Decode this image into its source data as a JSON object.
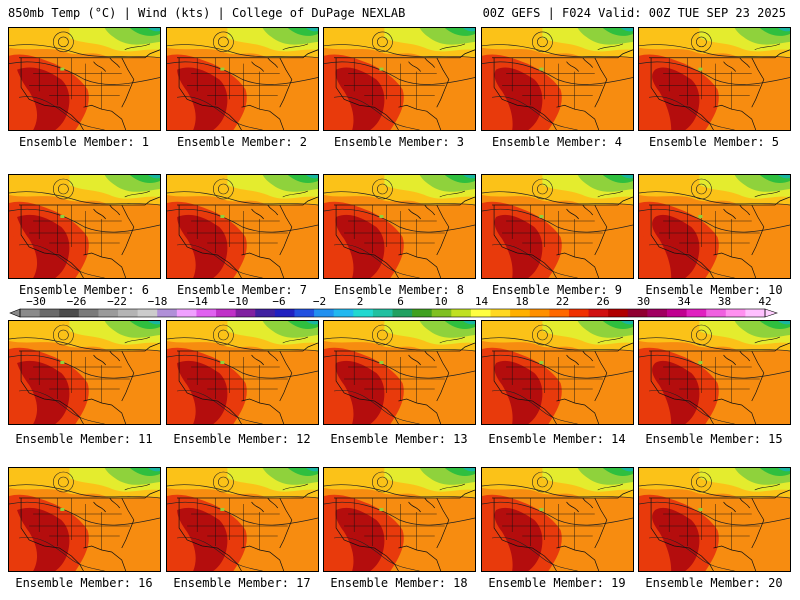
{
  "header": {
    "left_title": "850mb Temp (°C) | Wind (kts) | College of DuPage NEXLAB",
    "right_title": "00Z GEFS | F024 Valid: 00Z TUE SEP 23 2025"
  },
  "members": [
    {
      "label": "Ensemble Member: 1"
    },
    {
      "label": "Ensemble Member: 2"
    },
    {
      "label": "Ensemble Member: 3"
    },
    {
      "label": "Ensemble Member: 4"
    },
    {
      "label": "Ensemble Member: 5"
    },
    {
      "label": "Ensemble Member: 6"
    },
    {
      "label": "Ensemble Member: 7"
    },
    {
      "label": "Ensemble Member: 8"
    },
    {
      "label": "Ensemble Member: 9"
    },
    {
      "label": "Ensemble Member: 10"
    },
    {
      "label": "Ensemble Member: 11"
    },
    {
      "label": "Ensemble Member: 12"
    },
    {
      "label": "Ensemble Member: 13"
    },
    {
      "label": "Ensemble Member: 14"
    },
    {
      "label": "Ensemble Member: 15"
    },
    {
      "label": "Ensemble Member: 16"
    },
    {
      "label": "Ensemble Member: 17"
    },
    {
      "label": "Ensemble Member: 18"
    },
    {
      "label": "Ensemble Member: 19"
    },
    {
      "label": "Ensemble Member: 20"
    }
  ],
  "colorbar": {
    "ticks": [
      "−30",
      "−26",
      "−22",
      "−18",
      "−14",
      "−10",
      "−6",
      "−2",
      "2",
      "6",
      "10",
      "14",
      "18",
      "22",
      "26",
      "30",
      "34",
      "38",
      "42"
    ],
    "colors": [
      "#8a8a8a",
      "#6a6a6a",
      "#4c4c4c",
      "#7a7a7a",
      "#9a9a9a",
      "#b4b4b4",
      "#cccccc",
      "#b090d8",
      "#f0a0ff",
      "#e060f0",
      "#c030c8",
      "#8020a0",
      "#4020a0",
      "#2020c0",
      "#2050e0",
      "#2090f0",
      "#20b8f0",
      "#20d8d0",
      "#20c0a0",
      "#20a060",
      "#40a020",
      "#80c020",
      "#c0e020",
      "#ffff40",
      "#ffd820",
      "#ffb000",
      "#ff9000",
      "#ff6800",
      "#f03000",
      "#d01010",
      "#b00000",
      "#900030",
      "#a00060",
      "#c00090",
      "#e020c0",
      "#f060e0",
      "#ff90f0",
      "#ffc0ff"
    ]
  },
  "map_colors": {
    "hot": "#b40d0d",
    "warm": "#e83a0c",
    "mild": "#f78c10",
    "cool": "#fbc218",
    "fresh": "#e4ec2e",
    "cold": "#8fd23c",
    "colder": "#2fbf3f",
    "coldest": "#19b6a0"
  }
}
